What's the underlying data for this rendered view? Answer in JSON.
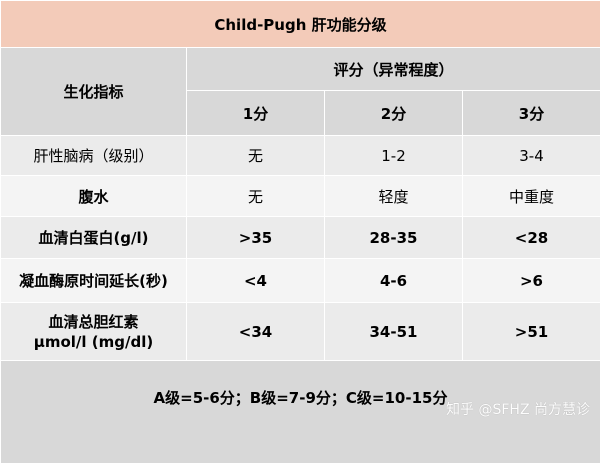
{
  "title": "Child-Pugh 肝功能分级",
  "header": {
    "indicator_label": "生化指标",
    "score_group_label": "评分（异常程度）",
    "score_columns": [
      "1分",
      "2分",
      "3分"
    ]
  },
  "rows": [
    {
      "label": "肝性脑病（级别）",
      "values": [
        "无",
        "1-2",
        "3-4"
      ]
    },
    {
      "label": "腹水",
      "values": [
        "无",
        "轻度",
        "中重度"
      ]
    },
    {
      "label": "血清白蛋白(g/l)",
      "values": [
        ">35",
        "28-35",
        "<28"
      ]
    },
    {
      "label": "凝血酶原时间延长(秒)",
      "values": [
        "<4",
        "4-6",
        ">6"
      ]
    },
    {
      "label_line1": "血清总胆红素",
      "label_line2": "μmol/l (mg/dl)",
      "values": [
        "<34",
        "34-51",
        ">51"
      ]
    }
  ],
  "footer": "A级=5-6分；B级=7-9分；C级=10-15分",
  "watermark": "知乎 @SFHZ 尚方慧诊",
  "colors": {
    "title_bg": "#f3cbb9",
    "header_bg": "#d8d8d8",
    "row_dark": "#ebebeb",
    "row_light": "#f4f4f4"
  }
}
